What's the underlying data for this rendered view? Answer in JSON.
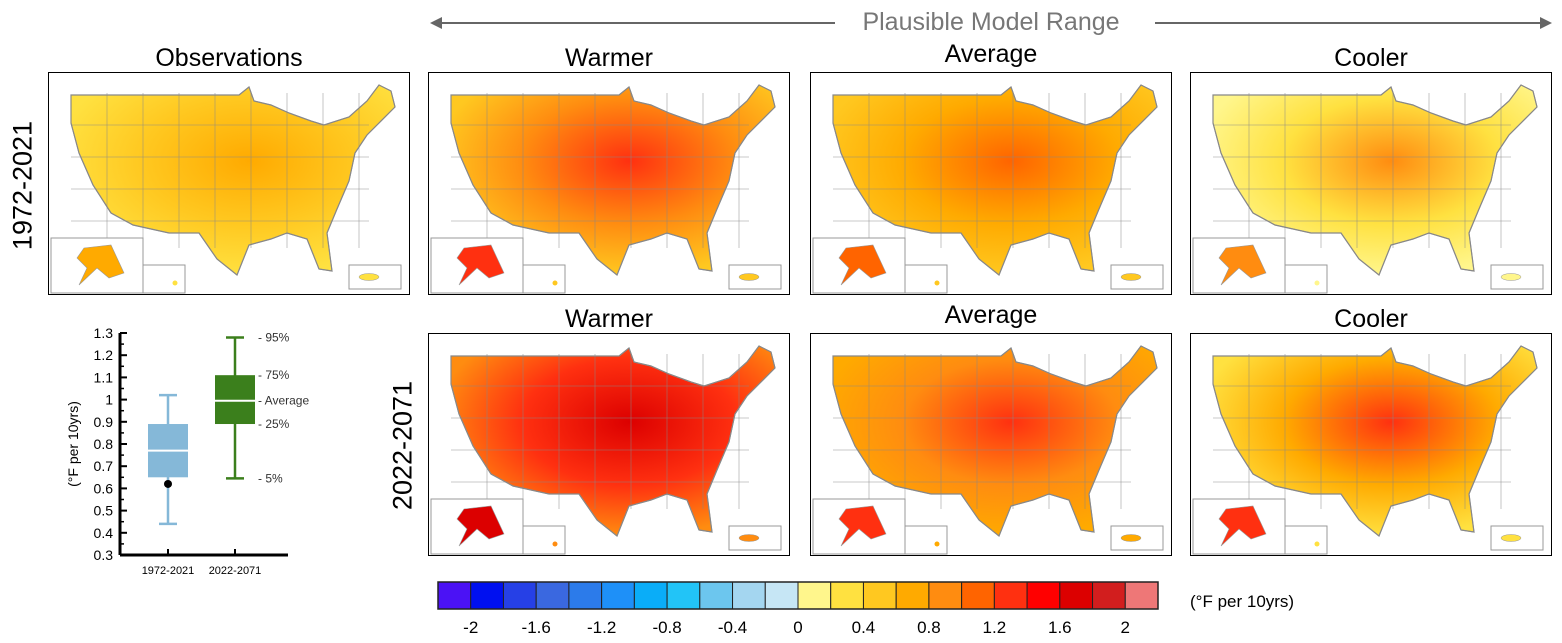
{
  "header": {
    "range_label": "Plausible Model Range"
  },
  "row_labels": [
    "1972-2021",
    "2022-2071"
  ],
  "maps": [
    {
      "title": "Observations",
      "base": "#FFC820",
      "hot": "#FFAA00",
      "cool": "#FFE140"
    },
    {
      "title": "Warmer",
      "base": "#FF8C10",
      "hot": "#FF3010",
      "cool": "#FFC820"
    },
    {
      "title": "Average",
      "base": "#FFAA00",
      "hot": "#FF6400",
      "cool": "#FFC820"
    },
    {
      "title": "Cooler",
      "base": "#FFE140",
      "hot": "#FF8C10",
      "cool": "#FFF68C"
    },
    {
      "title": "Warmer",
      "base": "#FF3010",
      "hot": "#DC0000",
      "cool": "#FF8C10"
    },
    {
      "title": "Average",
      "base": "#FF8C10",
      "hot": "#FF3010",
      "cool": "#FFAA00"
    },
    {
      "title": "Cooler",
      "base": "#FFAA00",
      "hot": "#FF3010",
      "cool": "#FFE140"
    }
  ],
  "chart_data": [
    {
      "type": "box",
      "ylabel": "(°F per 10yrs)",
      "ylim": [
        0.3,
        1.3
      ],
      "yticks": [
        "0.3",
        "0.4",
        "0.5",
        "0.6",
        "0.7",
        "0.8",
        "0.9",
        "1",
        "1.1",
        "1.2",
        "1.3"
      ],
      "categories": [
        "1972-2021",
        "2022-2071"
      ],
      "series": [
        {
          "name": "1972-2021",
          "p5": 0.44,
          "p25": 0.65,
          "average": 0.77,
          "p75": 0.89,
          "p95": 1.02,
          "observed": 0.62,
          "color": "#85B8D8"
        },
        {
          "name": "2022-2071",
          "p5": 0.645,
          "p25": 0.89,
          "average": 0.995,
          "p75": 1.11,
          "p95": 1.28,
          "color": "#3B7F1C"
        }
      ],
      "annotations": [
        {
          "text": "- 95%",
          "y": 1.28
        },
        {
          "text": "- 75%",
          "y": 1.11
        },
        {
          "text": "- Average",
          "y": 0.995
        },
        {
          "text": "- 25%",
          "y": 0.89
        },
        {
          "text": "- 5%",
          "y": 0.645
        }
      ]
    },
    {
      "type": "colorbar",
      "unit_label": "(°F per 10yrs)",
      "range": [
        -2.2,
        2.2
      ],
      "colors": [
        "#4B12F5",
        "#0010F0",
        "#2640E6",
        "#3A68E0",
        "#2C7BEA",
        "#1E90F8",
        "#0AADF8",
        "#22C4F7",
        "#6CC6EE",
        "#A4D6F0",
        "#C6E6F5",
        "#FFF68C",
        "#FFE140",
        "#FFC820",
        "#FFAA00",
        "#FF8C10",
        "#FF6400",
        "#FF3010",
        "#FF0000",
        "#DC0000",
        "#D21E1E",
        "#EE7777"
      ],
      "ticks": [
        {
          "label": "-2",
          "value": -2
        },
        {
          "label": "-1.6",
          "value": -1.6
        },
        {
          "label": "-1.2",
          "value": -1.2
        },
        {
          "label": "-0.8",
          "value": -0.8
        },
        {
          "label": "-0.4",
          "value": -0.4
        },
        {
          "label": "0",
          "value": 0
        },
        {
          "label": "0.4",
          "value": 0.4
        },
        {
          "label": "0.8",
          "value": 0.8
        },
        {
          "label": "1.2",
          "value": 1.2
        },
        {
          "label": "1.6",
          "value": 1.6
        },
        {
          "label": "2",
          "value": 2
        }
      ]
    }
  ]
}
